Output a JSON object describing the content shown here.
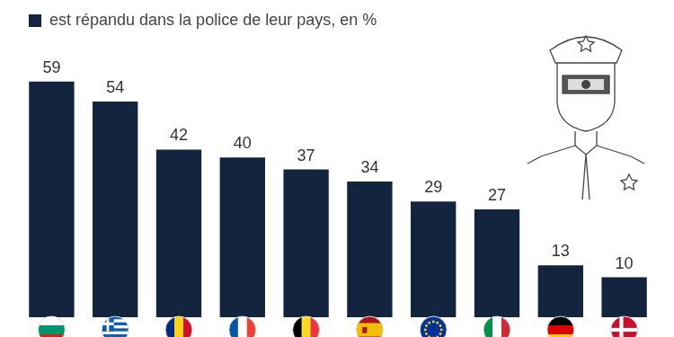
{
  "chart_data": {
    "type": "bar",
    "categories": [
      null,
      null,
      null,
      null,
      null,
      null,
      null,
      null,
      null,
      null
    ],
    "series": [
      {
        "name": "est répandu dans la police de leur pays, en %",
        "color": "#13253e",
        "values": [
          59,
          54,
          42,
          40,
          37,
          34,
          29,
          27,
          13,
          10
        ]
      }
    ],
    "ylim": [
      0,
      70
    ],
    "legend": "top-left",
    "data_labels": true,
    "tick_labels": false,
    "grid": false
  }
}
